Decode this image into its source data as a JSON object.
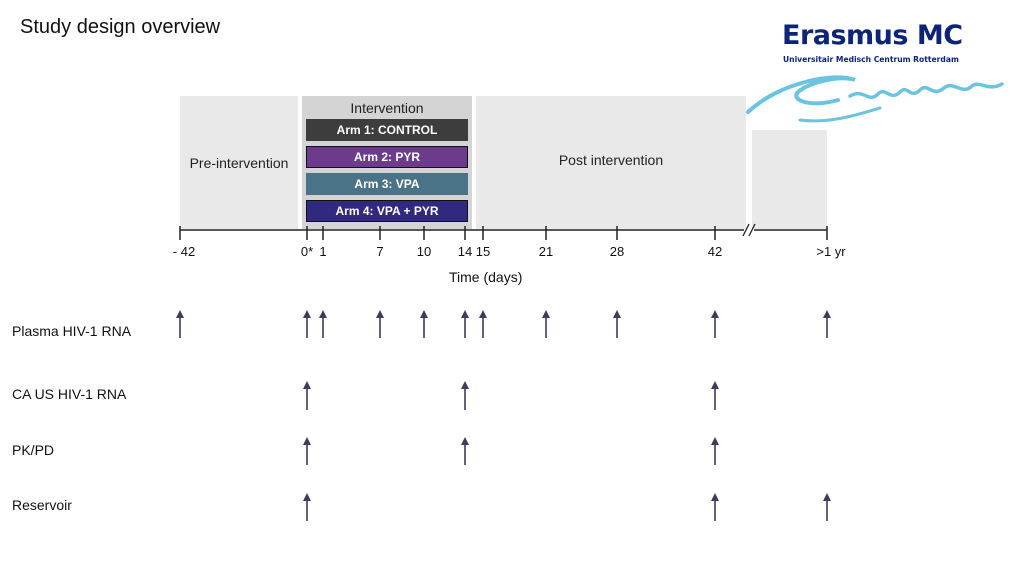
{
  "slide_title": "Study design overview",
  "logo": {
    "wordmark": "Erasmus MC",
    "subtitle": "Universitair Medisch Centrum Rotterdam"
  },
  "phases": {
    "pre": "Pre-intervention",
    "intervention": "Intervention",
    "post": "Post intervention"
  },
  "arms": [
    {
      "label": "Arm 1: CONTROL",
      "color": "#3d3d3d"
    },
    {
      "label": "Arm 2: PYR",
      "color": "#6d3b8c"
    },
    {
      "label": "Arm 3: VPA",
      "color": "#4a7388"
    },
    {
      "label": "Arm 4: VPA + PYR",
      "color": "#31297e"
    }
  ],
  "axis": {
    "title": "Time (days)",
    "ticks": [
      "- 42",
      "0*",
      "1",
      "7",
      "10",
      "14",
      "15",
      "21",
      "28",
      "42",
      ">1 yr"
    ]
  },
  "rows": [
    {
      "label": "Plasma HIV-1 RNA",
      "points": [
        "- 42",
        "0*",
        "1",
        "7",
        "10",
        "14",
        "15",
        "21",
        "28",
        "42",
        ">1 yr"
      ]
    },
    {
      "label": "CA US HIV-1 RNA",
      "points": [
        "0*",
        "14",
        "42"
      ]
    },
    {
      "label": "PK/PD",
      "points": [
        "0*",
        "14",
        "42"
      ]
    },
    {
      "label": "Reservoir",
      "points": [
        "0*",
        "42",
        ">1 yr"
      ]
    }
  ],
  "colors": {
    "arrow": "#3c3c5e",
    "logo_blue": "#0c2577",
    "logo_swoosh": "#6cc3e0"
  }
}
